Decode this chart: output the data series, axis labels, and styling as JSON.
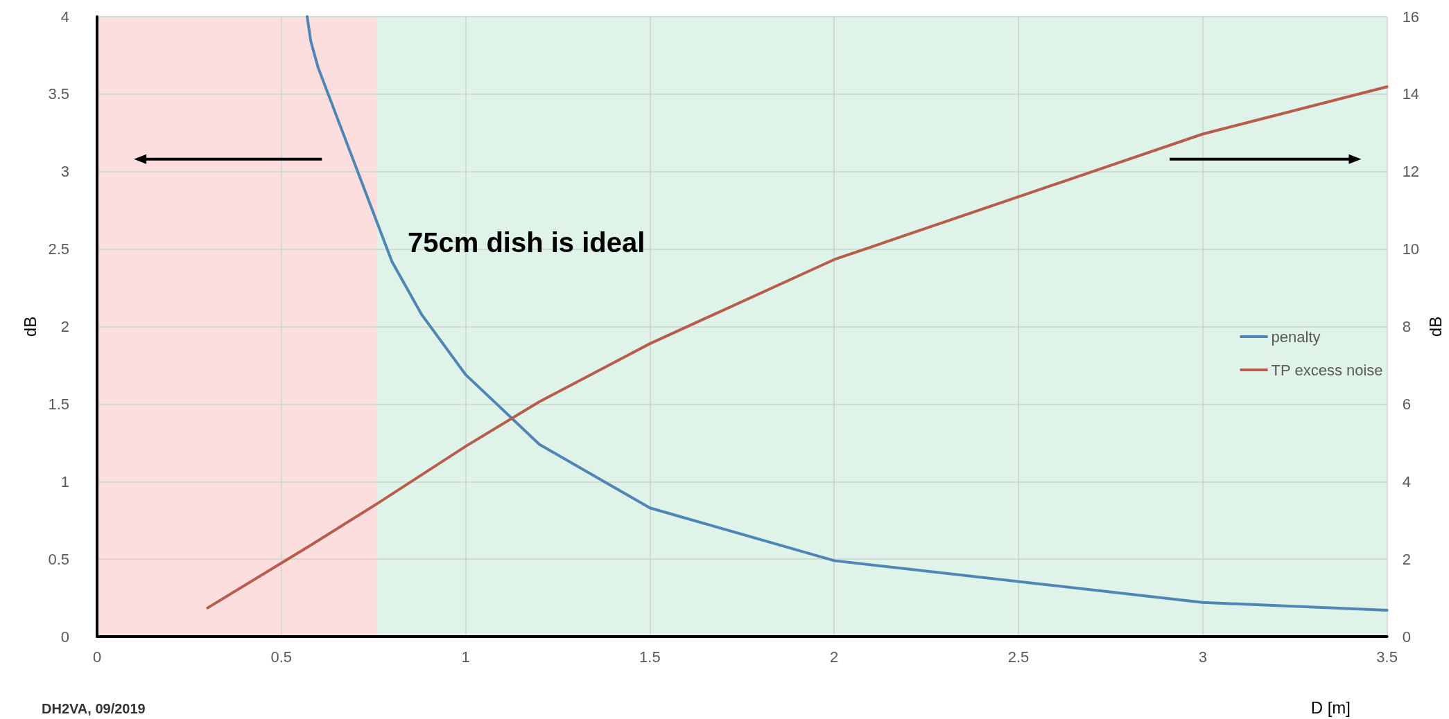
{
  "chart_data": {
    "type": "line",
    "xlabel": "D [m]",
    "ylabel": "dB",
    "y2label": "dB",
    "xlim": [
      0,
      3.5
    ],
    "xticks": [
      0,
      0.5,
      1,
      1.5,
      2,
      2.5,
      3,
      3.5
    ],
    "ylim": [
      0,
      4
    ],
    "yticks": [
      0,
      0.5,
      1,
      1.5,
      2,
      2.5,
      3,
      3.5,
      4
    ],
    "y2lim": [
      0,
      16
    ],
    "y2ticks": [
      0,
      2,
      4,
      6,
      8,
      10,
      12,
      14,
      16
    ],
    "grid": true,
    "legend": "right",
    "marker": "none",
    "line_style": "solid",
    "series": [
      {
        "name": "penalty",
        "color": "#4f86b5",
        "x": [
          0.57,
          0.58,
          0.6,
          0.8,
          0.88,
          1,
          1.2,
          1.5,
          2,
          3,
          3.5
        ],
        "values": [
          4,
          3.84,
          3.67,
          2.42,
          2.08,
          1.69,
          1.24,
          0.83,
          0.49,
          0.22,
          0.17
        ]
      },
      {
        "name": "TP excess noise",
        "color": "#b85c4c",
        "axis": "y2",
        "x": [
          0.3,
          0.58,
          0.76,
          1,
          1.2,
          1.5,
          2,
          3,
          3.5
        ],
        "values": [
          0.74,
          2.36,
          3.43,
          4.91,
          6.06,
          7.56,
          9.73,
          12.97,
          14.19
        ]
      }
    ],
    "bands": [
      {
        "axis": "x",
        "from": 0,
        "to": 0.76,
        "color": "#fddede"
      },
      {
        "axis": "x",
        "from": 0.76,
        "to": 3.5,
        "color": "#dff3e8"
      }
    ],
    "annotations": [
      "75cm dish is ideal",
      "DH2VA, 09/2019"
    ]
  }
}
